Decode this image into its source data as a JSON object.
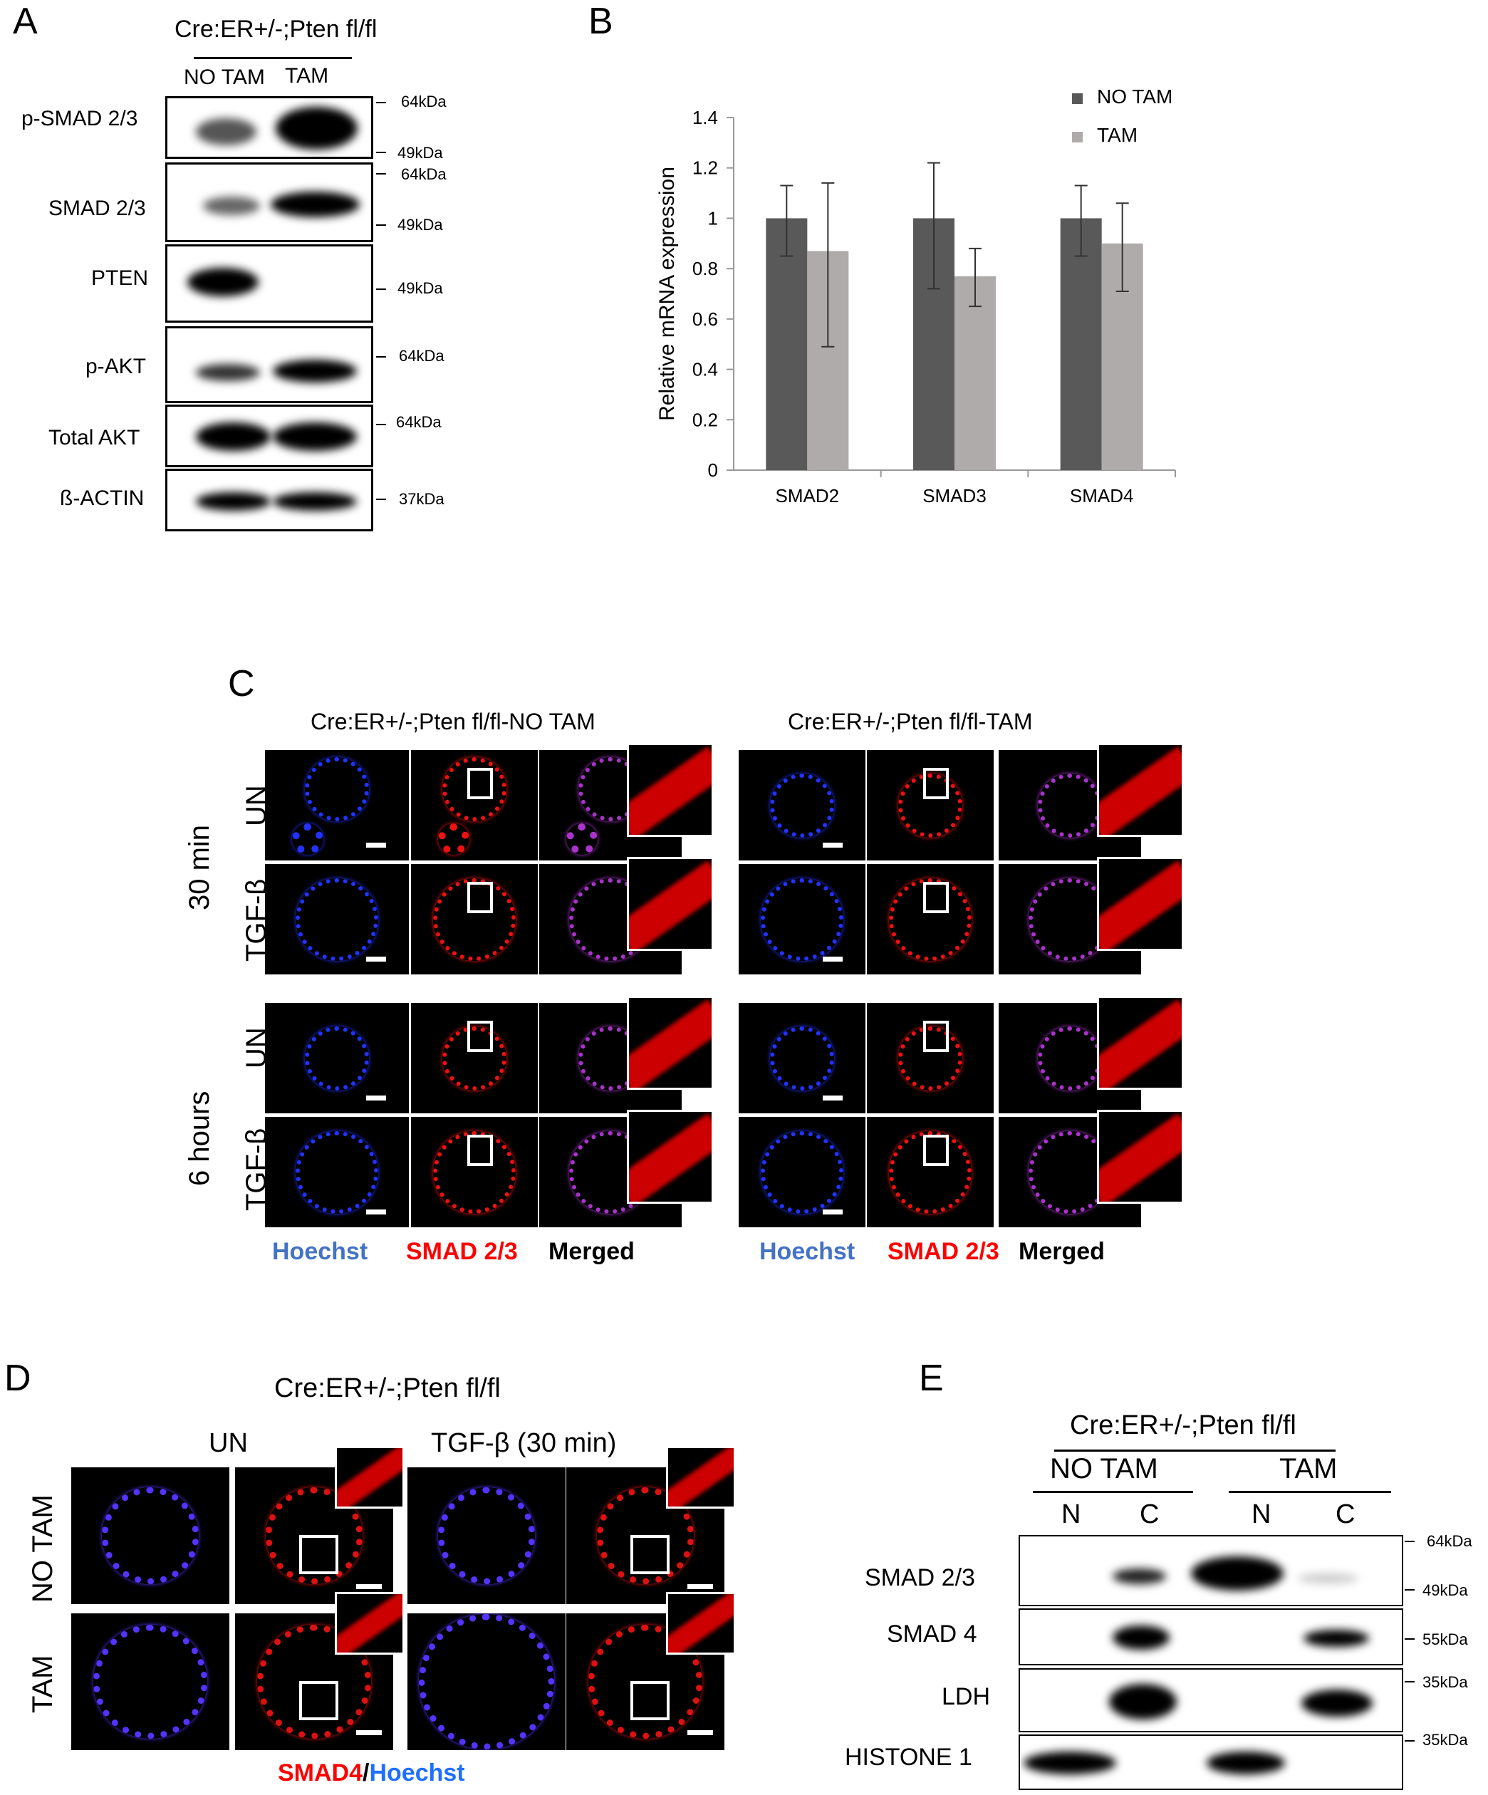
{
  "panel_A": {
    "label": "A",
    "genotype": "Cre:ER+/-;Pten fl/fl",
    "lanes": [
      "NO TAM",
      "TAM"
    ],
    "blots": [
      {
        "name": "p-SMAD 2/3",
        "markers": [
          "64kDa",
          "49kDa"
        ]
      },
      {
        "name": "SMAD 2/3",
        "markers": [
          "64kDa",
          "49kDa"
        ]
      },
      {
        "name": "PTEN",
        "markers": [
          "49kDa"
        ]
      },
      {
        "name": "p-AKT",
        "markers": [
          "64kDa"
        ]
      },
      {
        "name": "Total  AKT",
        "markers": [
          "64kDa"
        ]
      },
      {
        "name": "ß-ACTIN",
        "markers": [
          "37kDa"
        ]
      }
    ]
  },
  "panel_B": {
    "label": "B",
    "chart_data": {
      "type": "bar",
      "ylabel": "Relative mRNA expression",
      "xlabel": "",
      "categories": [
        "SMAD2",
        "SMAD3",
        "SMAD4"
      ],
      "ylim": [
        0,
        1.4
      ],
      "yticks": [
        "0",
        "0.2",
        "0.4",
        "0.6",
        "0.8",
        "1",
        "1.2",
        "1.4"
      ],
      "series": [
        {
          "name": "NO TAM",
          "color": "#595959",
          "values": [
            1.0,
            1.0,
            1.0
          ],
          "err_low": [
            0.85,
            0.72,
            0.85
          ],
          "err_high": [
            1.13,
            1.22,
            1.13
          ]
        },
        {
          "name": "TAM",
          "color": "#afabab",
          "values": [
            0.87,
            0.77,
            0.9
          ],
          "err_low": [
            0.49,
            0.65,
            0.71
          ],
          "err_high": [
            1.14,
            0.88,
            1.06
          ]
        }
      ],
      "legend": "top-right",
      "grid": false
    }
  },
  "panel_C": {
    "label": "C",
    "left_title": "Cre:ER+/-;Pten fl/fl-NO TAM",
    "right_title": "Cre:ER+/-;Pten fl/fl-TAM",
    "time_labels": [
      "30 min",
      "6 hours"
    ],
    "row_labels": [
      "UN",
      "TGF-β",
      "UN",
      "TGF-β"
    ],
    "channels": [
      "Hoechst",
      "SMAD 2/3",
      "Merged"
    ],
    "channel_colors": {
      "hoechst": "#4472c4",
      "smad": "#ff0000",
      "merged": "#000000"
    }
  },
  "panel_D": {
    "label": "D",
    "genotype": "Cre:ER+/-;Pten fl/fl",
    "col_labels": [
      "UN",
      "TGF-β (30 min)"
    ],
    "row_labels": [
      "NO TAM",
      "TAM"
    ],
    "stain_red": "SMAD4",
    "stain_sep": "/",
    "stain_blue": "Hoechst"
  },
  "panel_E": {
    "label": "E",
    "genotype": "Cre:ER+/-;Pten fl/fl",
    "groups": [
      "NO TAM",
      "TAM"
    ],
    "fractions": [
      "N",
      "C",
      "N",
      "C"
    ],
    "blots": [
      {
        "name": "SMAD 2/3",
        "markers": [
          "64kDa",
          "49kDa"
        ]
      },
      {
        "name": "SMAD 4",
        "markers": [
          "55kDa"
        ]
      },
      {
        "name": "LDH",
        "markers": [
          "35kDa"
        ]
      },
      {
        "name": "HISTONE 1",
        "markers": [
          "35kDa"
        ]
      }
    ]
  }
}
